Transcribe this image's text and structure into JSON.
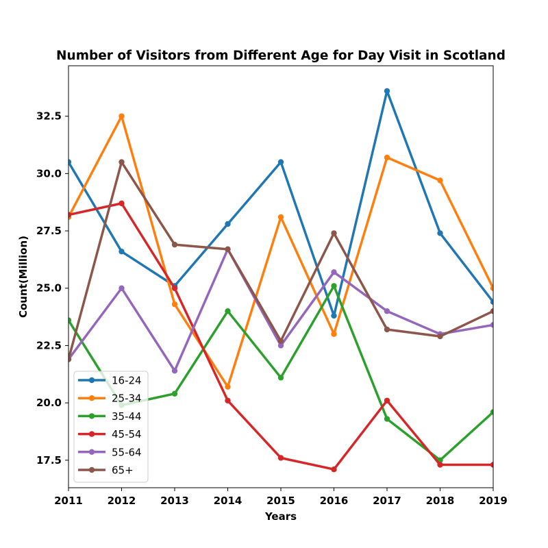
{
  "chart_data": {
    "type": "line",
    "title": "Number of Visitors from Different Age for Day Visit in Scotland",
    "xlabel": "Years",
    "ylabel": "Count(Million)",
    "x": [
      2011,
      2012,
      2013,
      2014,
      2015,
      2016,
      2017,
      2018,
      2019
    ],
    "x_tick_labels": [
      "2011",
      "2012",
      "2013",
      "2014",
      "2015",
      "2016",
      "2017",
      "2018",
      "2019"
    ],
    "xlim": [
      2011,
      2019
    ],
    "ylim": [
      16.3,
      34.7
    ],
    "y_ticks": [
      17.5,
      20.0,
      22.5,
      25.0,
      27.5,
      30.0,
      32.5
    ],
    "y_tick_labels": [
      "17.5",
      "20.0",
      "22.5",
      "25.0",
      "27.5",
      "30.0",
      "32.5"
    ],
    "grid": false,
    "legend_position": "lower-left",
    "series": [
      {
        "name": "16-24",
        "color": "#1f77b4",
        "values": [
          30.5,
          26.6,
          25.1,
          27.8,
          30.5,
          23.8,
          33.6,
          27.4,
          24.4
        ]
      },
      {
        "name": "25-34",
        "color": "#ff7f0e",
        "values": [
          28.1,
          32.5,
          24.3,
          20.7,
          28.1,
          23.0,
          30.7,
          29.7,
          25.0
        ]
      },
      {
        "name": "35-44",
        "color": "#2ca02c",
        "values": [
          23.6,
          19.9,
          20.4,
          24.0,
          21.1,
          25.1,
          19.3,
          17.5,
          19.6
        ]
      },
      {
        "name": "45-54",
        "color": "#d62728",
        "values": [
          28.2,
          28.7,
          25.0,
          20.1,
          17.6,
          17.1,
          20.1,
          17.3,
          17.3
        ]
      },
      {
        "name": "55-64",
        "color": "#9467bd",
        "values": [
          21.9,
          25.0,
          21.4,
          26.7,
          22.5,
          25.7,
          24.0,
          23.0,
          23.4
        ]
      },
      {
        "name": "65+",
        "color": "#8c564b",
        "values": [
          21.9,
          30.5,
          26.9,
          26.7,
          22.7,
          27.4,
          23.2,
          22.9,
          24.0
        ]
      }
    ]
  }
}
